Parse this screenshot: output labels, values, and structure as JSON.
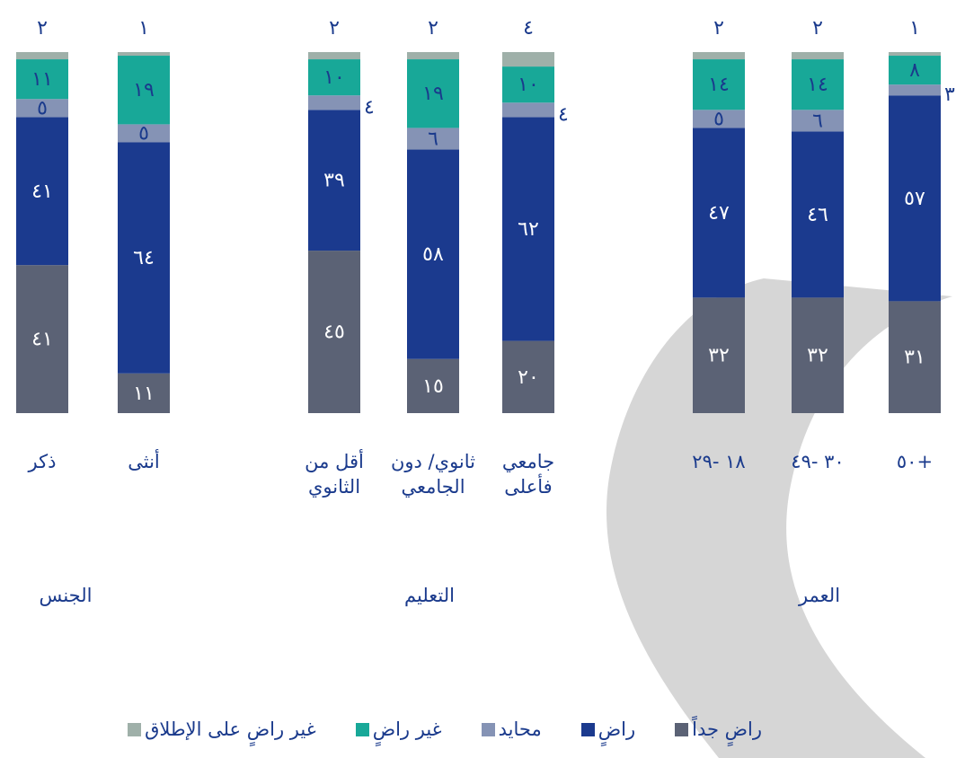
{
  "chart_data": {
    "type": "stacked-bar",
    "categories": [
      "ذكر",
      "أنثى",
      "أقل من الثانوي",
      "ثانوي/ دون الجامعي",
      "جامعي فأعلى",
      "١٨ -٢٩",
      "٣٠ -٤٩",
      "+٥٠"
    ],
    "groups": [
      "الجنس",
      "التعليم",
      "العمر"
    ],
    "ylim": [
      0,
      100
    ],
    "series": [
      {
        "name": "راضٍ جداً",
        "color": "#5b6275",
        "values": [
          41,
          11,
          45,
          15,
          20,
          32,
          32,
          31
        ],
        "value_labels": [
          "٤١",
          "١١",
          "٤٥",
          "١٥",
          "٢٠",
          "٣٢",
          "٣٢",
          "٣١"
        ]
      },
      {
        "name": "راضٍ",
        "color": "#1b3a8e",
        "values": [
          41,
          64,
          39,
          58,
          62,
          47,
          46,
          57
        ],
        "value_labels": [
          "٤١",
          "٦٤",
          "٣٩",
          "٥٨",
          "٦٢",
          "٤٧",
          "٤٦",
          "٥٧"
        ]
      },
      {
        "name": "محايد",
        "color": "#8593b5",
        "values": [
          5,
          5,
          4,
          6,
          4,
          5,
          6,
          3
        ],
        "value_labels": [
          "٥",
          "٥",
          "٤",
          "٦",
          "٤",
          "٥",
          "٦",
          "٣"
        ]
      },
      {
        "name": "غير راضٍ",
        "color": "#18a898",
        "values": [
          11,
          19,
          10,
          19,
          10,
          14,
          14,
          8
        ],
        "value_labels": [
          "١١",
          "١٩",
          "١٠",
          "١٩",
          "١٠",
          "١٤",
          "١٤",
          "٨"
        ]
      },
      {
        "name": "غير راضٍ على الإطلاق",
        "color": "#9fb0a9",
        "values": [
          2,
          1,
          2,
          2,
          4,
          2,
          2,
          1
        ],
        "value_labels": [
          "٢",
          "١",
          "٢",
          "٢",
          "٤",
          "٢",
          "٢",
          "١"
        ]
      }
    ]
  }
}
